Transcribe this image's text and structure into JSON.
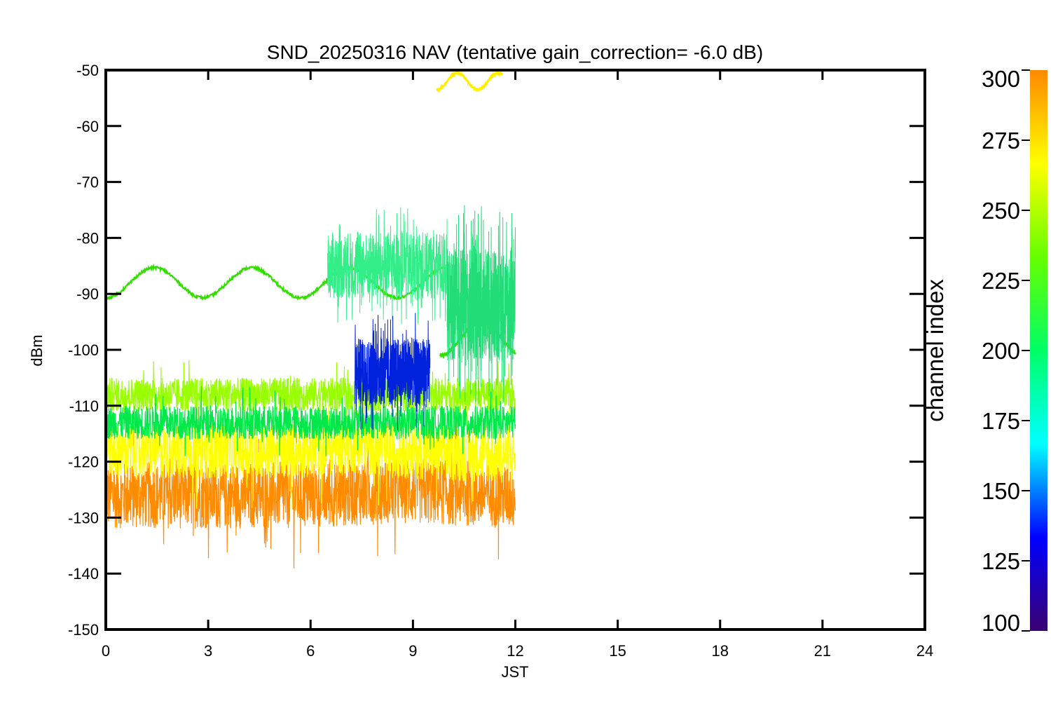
{
  "chart_data": {
    "type": "line",
    "title": "SND_20250316 NAV (tentative gain_correction= -6.0 dB)",
    "xlabel": "JST",
    "ylabel": "dBm",
    "xlim": [
      0,
      24
    ],
    "ylim": [
      -150,
      -50
    ],
    "xticks": [
      "0",
      "3",
      "6",
      "9",
      "12",
      "15",
      "18",
      "21",
      "24"
    ],
    "yticks": [
      "-50",
      "-60",
      "-70",
      "-80",
      "-90",
      "-100",
      "-110",
      "-120",
      "-130",
      "-140",
      "-150"
    ],
    "data_time_range": [
      0,
      12
    ],
    "colorbar": {
      "label": "channel index",
      "range": [
        100,
        300
      ],
      "ticks": [
        "300",
        "275",
        "250",
        "225",
        "200",
        "175",
        "150",
        "125",
        "100"
      ],
      "colormap": [
        "#3a0070",
        "#0000ff",
        "#00ffff",
        "#00ff66",
        "#66ff00",
        "#ffff00",
        "#ff8800"
      ]
    },
    "series": [
      {
        "channel": 285,
        "color": "#ff8c00",
        "band": "wide",
        "center": [
          [
            0,
            -126
          ],
          [
            6,
            -126
          ],
          [
            8.5,
            -125
          ],
          [
            12,
            -126
          ]
        ],
        "spread": 6
      },
      {
        "channel": 270,
        "color": "#ffff00",
        "band": "wide",
        "center": [
          [
            0,
            -118
          ],
          [
            6,
            -118
          ],
          [
            7.2,
            -117
          ],
          [
            8.5,
            -118
          ],
          [
            12,
            -119
          ]
        ],
        "spread": 5
      },
      {
        "channel": 255,
        "color": "#99ff00",
        "band": "wide",
        "center": [
          [
            0,
            -108
          ],
          [
            12,
            -108
          ]
        ],
        "spread": 3
      },
      {
        "channel": 225,
        "color": "#00e84a",
        "band": "wide",
        "center": [
          [
            0,
            -113
          ],
          [
            12,
            -113
          ]
        ],
        "spread": 3
      },
      {
        "channel": 240,
        "color": "#33dd00",
        "band": "sine",
        "center": [
          [
            0,
            -88
          ],
          [
            12,
            -88
          ]
        ],
        "amplitude": 2.7,
        "period": 2.85,
        "end": 10
      },
      {
        "channel": 240,
        "color": "#33dd00",
        "band": "sine",
        "center": [
          [
            9.8,
            -98
          ],
          [
            12,
            -98
          ]
        ],
        "amplitude": 3,
        "period": 2.4
      },
      {
        "channel": 210,
        "color": "#33ee88",
        "band": "spiky",
        "center": [
          [
            6.5,
            -85
          ],
          [
            10,
            -85
          ]
        ],
        "spread": 6
      },
      {
        "channel": 200,
        "color": "#22dd77",
        "band": "spiky",
        "center": [
          [
            10,
            -92
          ],
          [
            12,
            -92
          ]
        ],
        "spread": 10
      },
      {
        "channel": 145,
        "color": "#0022dd",
        "band": "spiky",
        "center": [
          [
            7.3,
            -104
          ],
          [
            9.5,
            -104
          ]
        ],
        "spread": 6
      },
      {
        "channel": 270,
        "color": "#ffee00",
        "band": "sine",
        "center": [
          [
            9.7,
            -52
          ],
          [
            11.6,
            -52
          ]
        ],
        "amplitude": 1.5,
        "period": 1.2,
        "start": 9.7,
        "end": 11.6
      }
    ]
  }
}
